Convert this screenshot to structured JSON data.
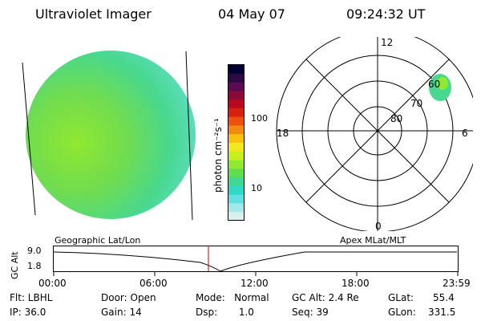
{
  "header": {
    "title": "Ultraviolet Imager",
    "date": "04 May 07",
    "time": "09:24:32 UT"
  },
  "colorbar": {
    "label": "photon cm⁻²s⁻¹",
    "ticks": [
      "100",
      "10"
    ],
    "colors": [
      "#000033",
      "#2a0a40",
      "#5a0a50",
      "#8a0a3a",
      "#b80820",
      "#d82010",
      "#ee5010",
      "#f08a10",
      "#f8c010",
      "#f0e820",
      "#c8ee20",
      "#90e830",
      "#60dc50",
      "#40d890",
      "#30d8c8",
      "#60e0e0",
      "#a0eaea",
      "#d8f0f0"
    ]
  },
  "polar": {
    "ring_labels": [
      "80",
      "70",
      "60"
    ],
    "mlt_labels": {
      "top": "12",
      "left": "18",
      "right": "6",
      "bottom": "0"
    }
  },
  "timeline": {
    "left_label": "Geographic Lat/Lon",
    "right_label": "Apex MLat/MLT",
    "axis_title": "GC Alt",
    "y_ticks": [
      "9.0",
      "1.8"
    ],
    "x_ticks": [
      "00:00",
      "06:00",
      "12:00",
      "18:00",
      "23:59"
    ],
    "accent_color": "#cc0000"
  },
  "info": {
    "filter": "Flt: LBHL",
    "ip": "IP: 36.0",
    "door": "Door: Open",
    "gain": "Gain: 14",
    "mode": "Mode:   Normal",
    "dsp": "Dsp:       1.0",
    "gc_alt": "GC Alt: 2.4 Re",
    "seq": "Seq: 39",
    "glat_label": "GLat:",
    "glat_value": "55.4",
    "glon_label": "GLon:",
    "glon_value": "331.5"
  }
}
